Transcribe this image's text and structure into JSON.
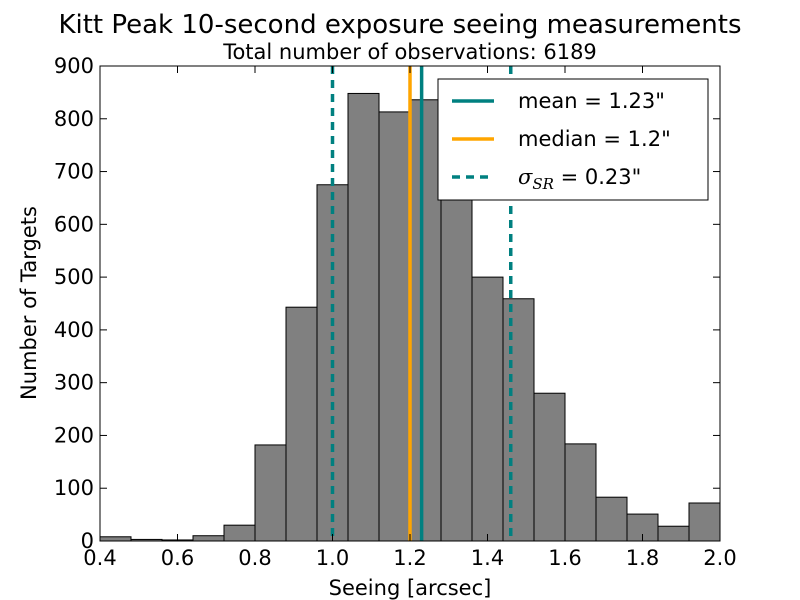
{
  "chart_data": {
    "type": "bar",
    "title": "Kitt Peak 10-second exposure seeing measurements",
    "subtitle": "Total number of observations: 6189",
    "xlabel": "Seeing [arcsec]",
    "ylabel": "Number of Targets",
    "xlim": [
      0.4,
      2.0
    ],
    "ylim": [
      0,
      900
    ],
    "x_ticks": [
      "0.4",
      "0.6",
      "0.8",
      "1.0",
      "1.2",
      "1.4",
      "1.6",
      "1.8",
      "2.0"
    ],
    "x_tick_values": [
      0.4,
      0.6,
      0.8,
      1.0,
      1.2,
      1.4,
      1.6,
      1.8,
      2.0
    ],
    "y_ticks": [
      "0",
      "100",
      "200",
      "300",
      "400",
      "500",
      "600",
      "700",
      "800",
      "900"
    ],
    "y_tick_values": [
      0,
      100,
      200,
      300,
      400,
      500,
      600,
      700,
      800,
      900
    ],
    "bin_edges": [
      0.4,
      0.48,
      0.56,
      0.64,
      0.72,
      0.8,
      0.88,
      0.96,
      1.04,
      1.12,
      1.2,
      1.28,
      1.36,
      1.44,
      1.52,
      1.6,
      1.68,
      1.76,
      1.84,
      1.92,
      2.0
    ],
    "values": [
      8,
      3,
      2,
      10,
      30,
      182,
      443,
      675,
      848,
      813,
      836,
      655,
      500,
      459,
      280,
      184,
      83,
      51,
      28,
      72
    ],
    "bar_color": "#808080",
    "bar_edge_color": "#000000",
    "lines": [
      {
        "name": "mean",
        "legend": "mean = 1.23\"",
        "x": 1.23,
        "style": "solid",
        "color": "#008080"
      },
      {
        "name": "median",
        "legend": "median = 1.2\"",
        "x": 1.2,
        "style": "solid",
        "color": "#FFA500"
      },
      {
        "name": "sigma-lower",
        "x": 1.0,
        "style": "dashed",
        "color": "#008080"
      },
      {
        "name": "sigma-upper",
        "x": 1.46,
        "style": "dashed",
        "color": "#008080"
      }
    ],
    "legend": {
      "position": "top-right",
      "entries": [
        {
          "label": "mean = 1.23\"",
          "color": "#008080",
          "style": "solid"
        },
        {
          "label": "median = 1.2\"",
          "color": "#FFA500",
          "style": "solid"
        },
        {
          "symbol": "σ",
          "subscript": "SR",
          "label_suffix": " = 0.23\"",
          "color": "#008080",
          "style": "dashed"
        }
      ]
    }
  }
}
